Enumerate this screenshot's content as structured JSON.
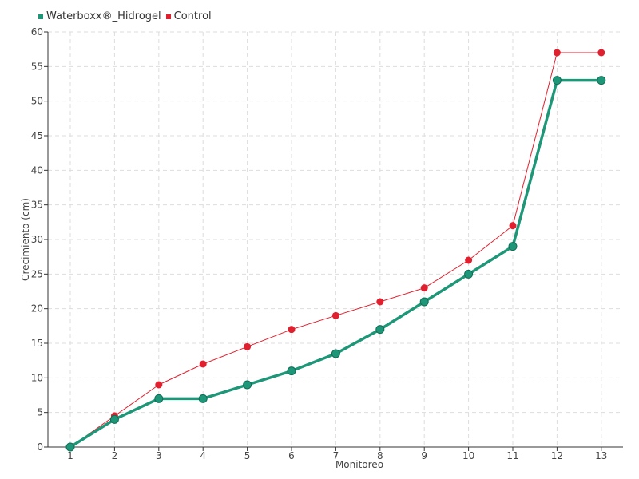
{
  "chart_data": {
    "type": "line",
    "title": "",
    "xlabel": "Monitoreo",
    "ylabel": "Crecimiento (cm)",
    "categories": [
      "1",
      "2",
      "3",
      "4",
      "5",
      "6",
      "7",
      "8",
      "9",
      "10",
      "11",
      "12",
      "13"
    ],
    "ylim": [
      0,
      60
    ],
    "yticks": [
      0,
      5,
      10,
      15,
      20,
      25,
      30,
      35,
      40,
      45,
      50,
      55,
      60
    ],
    "grid": true,
    "legend_position": "top-left",
    "series": [
      {
        "name": "Waterboxx®_Hidrogel",
        "color": "#1e9678",
        "values": [
          0,
          4,
          7,
          7,
          9,
          11,
          13.5,
          17,
          21,
          25,
          29,
          53,
          53
        ]
      },
      {
        "name": "Control",
        "color": "#e0202e",
        "values": [
          0,
          4.5,
          9,
          12,
          14.5,
          17,
          19,
          21,
          23,
          27,
          32,
          57,
          57
        ]
      }
    ]
  }
}
